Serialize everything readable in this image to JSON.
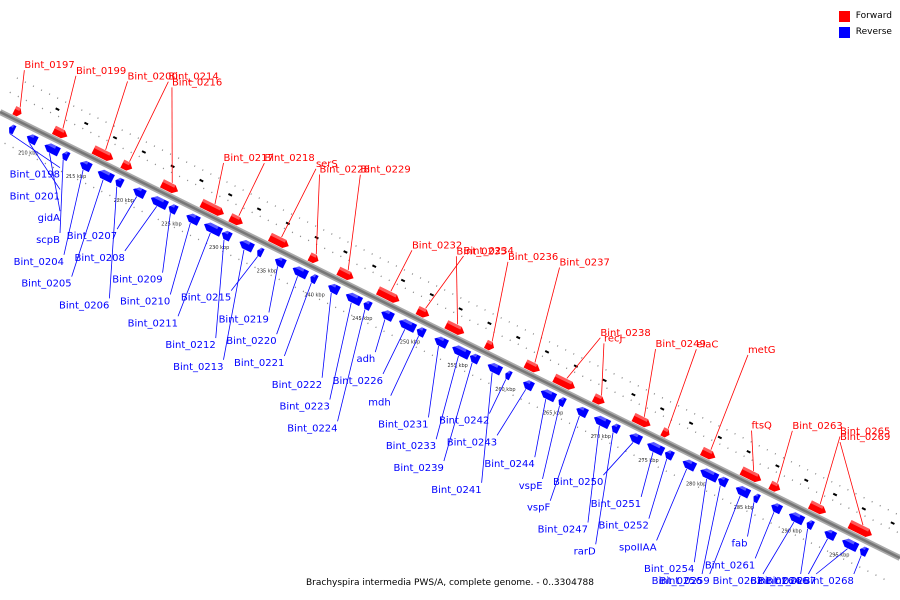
{
  "caption": "Brachyspira intermedia PWS/A, complete genome. - 0..3304788",
  "legend": [
    {
      "label": "Forward",
      "color": "#ff0000"
    },
    {
      "label": "Reverse",
      "color": "#0000ff"
    }
  ],
  "colors": {
    "forward": "#ff0000",
    "reverse": "#0000ff",
    "axis": "#777777"
  },
  "ticks": [
    "210 kbp",
    "215 kbp",
    "220 kbp",
    "225 kbp",
    "230 kbp",
    "235 kbp",
    "240 kbp",
    "245 kbp",
    "250 kbp",
    "255 kbp",
    "260 kbp",
    "265 kbp",
    "270 kbp",
    "275 kbp",
    "280 kbp",
    "285 kbp",
    "290 kbp",
    "295 kbp"
  ],
  "genes": [
    {
      "label": "Bint_0197",
      "strand": "forward"
    },
    {
      "label": "Bint_0198",
      "strand": "reverse"
    },
    {
      "label": "Bint_0199",
      "strand": "forward"
    },
    {
      "label": "Bint_0200",
      "strand": "forward"
    },
    {
      "label": "Bint_0201",
      "strand": "reverse"
    },
    {
      "label": "gidA",
      "strand": "reverse"
    },
    {
      "label": "scpB",
      "strand": "reverse"
    },
    {
      "label": "Bint_0204",
      "strand": "reverse"
    },
    {
      "label": "Bint_0205",
      "strand": "reverse"
    },
    {
      "label": "Bint_0206",
      "strand": "reverse"
    },
    {
      "label": "Bint_0207",
      "strand": "reverse"
    },
    {
      "label": "Bint_0208",
      "strand": "reverse"
    },
    {
      "label": "Bint_0209",
      "strand": "reverse"
    },
    {
      "label": "Bint_0210",
      "strand": "reverse"
    },
    {
      "label": "Bint_0211",
      "strand": "reverse"
    },
    {
      "label": "Bint_0212",
      "strand": "reverse"
    },
    {
      "label": "Bint_0213",
      "strand": "reverse"
    },
    {
      "label": "Bint_0214",
      "strand": "forward"
    },
    {
      "label": "Bint_0215",
      "strand": "reverse"
    },
    {
      "label": "Bint_0216",
      "strand": "forward"
    },
    {
      "label": "Bint_0217",
      "strand": "forward"
    },
    {
      "label": "Bint_0218",
      "strand": "forward"
    },
    {
      "label": "Bint_0219",
      "strand": "reverse"
    },
    {
      "label": "Bint_0220",
      "strand": "reverse"
    },
    {
      "label": "Bint_0221",
      "strand": "reverse"
    },
    {
      "label": "Bint_0222",
      "strand": "reverse"
    },
    {
      "label": "Bint_0223",
      "strand": "reverse"
    },
    {
      "label": "Bint_0224",
      "strand": "reverse"
    },
    {
      "label": "adh",
      "strand": "reverse"
    },
    {
      "label": "Bint_0226",
      "strand": "reverse"
    },
    {
      "label": "serS",
      "strand": "forward"
    },
    {
      "label": "Bint_0228",
      "strand": "forward"
    },
    {
      "label": "Bint_0229",
      "strand": "forward"
    },
    {
      "label": "mdh",
      "strand": "reverse"
    },
    {
      "label": "Bint_0231",
      "strand": "reverse"
    },
    {
      "label": "Bint_0232",
      "strand": "forward"
    },
    {
      "label": "Bint_0233",
      "strand": "reverse"
    },
    {
      "label": "Bint_0234",
      "strand": "forward"
    },
    {
      "label": "Bint_0235",
      "strand": "forward"
    },
    {
      "label": "Bint_0236",
      "strand": "forward"
    },
    {
      "label": "Bint_0237",
      "strand": "forward"
    },
    {
      "label": "Bint_0238",
      "strand": "forward"
    },
    {
      "label": "recJ",
      "strand": "forward"
    },
    {
      "label": "Bint_0239",
      "strand": "reverse"
    },
    {
      "label": "Bint_0241",
      "strand": "reverse"
    },
    {
      "label": "Bint_0242",
      "strand": "reverse"
    },
    {
      "label": "Bint_0243",
      "strand": "reverse"
    },
    {
      "label": "Bint_0244",
      "strand": "reverse"
    },
    {
      "label": "vspE",
      "strand": "reverse"
    },
    {
      "label": "vspF",
      "strand": "reverse"
    },
    {
      "label": "Bint_0247",
      "strand": "reverse"
    },
    {
      "label": "rarD",
      "strand": "reverse"
    },
    {
      "label": "Bint_0249",
      "strand": "forward"
    },
    {
      "label": "Bint_0250",
      "strand": "reverse"
    },
    {
      "label": "Bint_0251",
      "strand": "reverse"
    },
    {
      "label": "Bint_0252",
      "strand": "reverse"
    },
    {
      "label": "elaC",
      "strand": "forward"
    },
    {
      "label": "spoIIAA",
      "strand": "reverse"
    },
    {
      "label": "Bint_0254",
      "strand": "reverse"
    },
    {
      "label": "metG",
      "strand": "forward"
    },
    {
      "label": "Bint_0256",
      "strand": "reverse"
    },
    {
      "label": "ftsQ",
      "strand": "forward"
    },
    {
      "label": "Bint_0259",
      "strand": "reverse"
    },
    {
      "label": "fab",
      "strand": "reverse"
    },
    {
      "label": "Bint_0261",
      "strand": "reverse"
    },
    {
      "label": "Bint_0262",
      "strand": "reverse"
    },
    {
      "label": "Bint_0263",
      "strand": "forward"
    },
    {
      "label": "Bint_0264",
      "strand": "reverse"
    },
    {
      "label": "Bint_0265",
      "strand": "forward"
    },
    {
      "label": "Bint_0266",
      "strand": "reverse"
    },
    {
      "label": "Bint_0267",
      "strand": "reverse"
    },
    {
      "label": "Bint_0268",
      "strand": "reverse"
    },
    {
      "label": "Bint_0269",
      "strand": "forward"
    }
  ]
}
